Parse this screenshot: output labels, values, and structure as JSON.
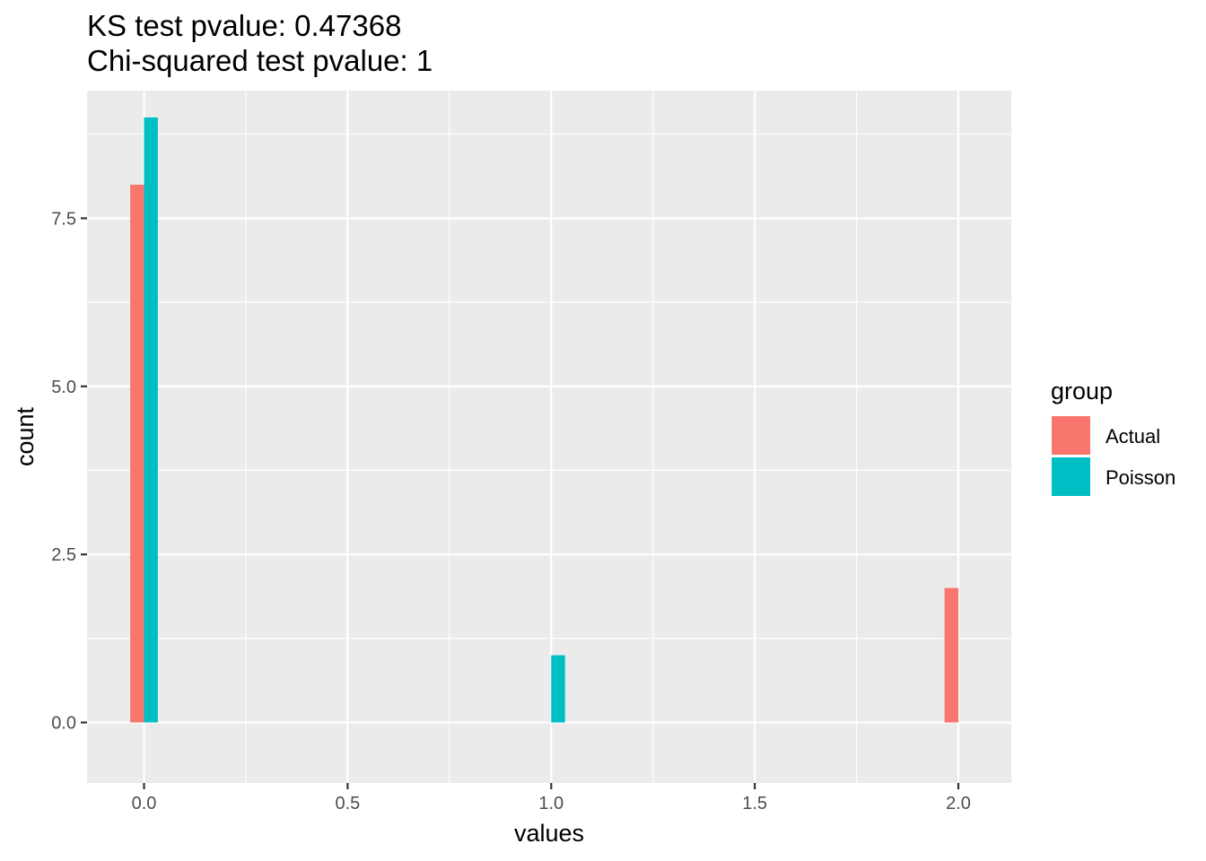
{
  "chart_data": {
    "type": "bar",
    "title_lines": [
      "KS test pvalue: 0.47368",
      "Chi-squared test pvalue: 1"
    ],
    "xlabel": "values",
    "ylabel": "count",
    "xlim": [
      -0.14,
      2.13
    ],
    "ylim": [
      -0.9,
      9.4
    ],
    "x_ticks": [
      0,
      0.5,
      1,
      1.5,
      2
    ],
    "x_tick_labels": [
      "0.0",
      "0.5",
      "1.0",
      "1.5",
      "2.0"
    ],
    "y_ticks": [
      0,
      2.5,
      5,
      7.5
    ],
    "y_tick_labels": [
      "0.0",
      "2.5",
      "5.0",
      "7.5"
    ],
    "grid": true,
    "legend_position": "right",
    "legend_title": "group",
    "bar_width": 0.068,
    "series": [
      {
        "name": "Actual",
        "color": "#F8766D",
        "points": [
          {
            "x": 0,
            "y": 8
          },
          {
            "x": 1,
            "y": 0
          },
          {
            "x": 2,
            "y": 2
          }
        ]
      },
      {
        "name": "Poisson",
        "color": "#00BFC4",
        "points": [
          {
            "x": 0,
            "y": 9
          },
          {
            "x": 1,
            "y": 1
          },
          {
            "x": 2,
            "y": 0
          }
        ]
      }
    ]
  }
}
